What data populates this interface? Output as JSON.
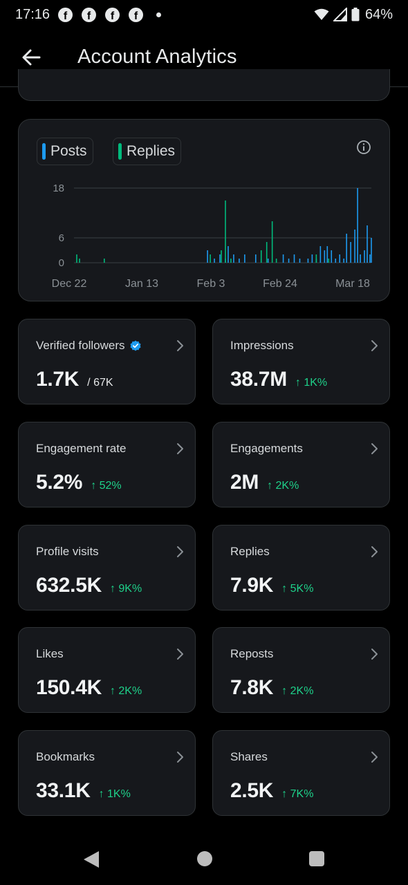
{
  "status_bar": {
    "time": "17:16",
    "notification_icons": [
      "f",
      "f",
      "f",
      "f"
    ],
    "battery_percent": "64%"
  },
  "header": {
    "title": "Account Analytics",
    "back_icon": "arrow-left-icon"
  },
  "chart_legend": {
    "posts_label": "Posts",
    "posts_color": "#1d9bf0",
    "replies_label": "Replies",
    "replies_color": "#00ba7c",
    "info_icon": "info-icon"
  },
  "chart_data": {
    "type": "bar",
    "x_ticks": [
      "Dec 22",
      "Jan 13",
      "Feb 3",
      "Feb 24",
      "Mar 18"
    ],
    "y_ticks": [
      0,
      6,
      18
    ],
    "ylim": [
      0,
      18
    ],
    "grid": true,
    "series": [
      {
        "name": "Posts",
        "color": "#1d9bf0",
        "points": [
          [
            48.5,
            3
          ],
          [
            51,
            1
          ],
          [
            53,
            2
          ],
          [
            55,
            1
          ],
          [
            56,
            4
          ],
          [
            58,
            2
          ],
          [
            60,
            1
          ],
          [
            62,
            2
          ],
          [
            66,
            2
          ],
          [
            68,
            1
          ],
          [
            70.5,
            1
          ],
          [
            76,
            2
          ],
          [
            78,
            1
          ],
          [
            80,
            2
          ],
          [
            82,
            1
          ],
          [
            85,
            1
          ],
          [
            86.5,
            2
          ],
          [
            88,
            1
          ],
          [
            89.5,
            4
          ],
          [
            91,
            3
          ],
          [
            92,
            4
          ],
          [
            93.5,
            3
          ],
          [
            95,
            1
          ],
          [
            96.5,
            2
          ],
          [
            98,
            1
          ],
          [
            99,
            7
          ],
          [
            100.5,
            5
          ],
          [
            102,
            8
          ],
          [
            103,
            18
          ],
          [
            104,
            2
          ],
          [
            105.5,
            3
          ],
          [
            106.5,
            9
          ],
          [
            107.5,
            2
          ],
          [
            108,
            6
          ]
        ]
      },
      {
        "name": "Replies",
        "color": "#00ba7c",
        "points": [
          [
            1,
            2
          ],
          [
            2,
            1
          ],
          [
            11,
            1
          ],
          [
            49.5,
            2
          ],
          [
            53.5,
            3
          ],
          [
            55,
            15
          ],
          [
            57,
            1
          ],
          [
            68,
            3
          ],
          [
            70,
            5
          ],
          [
            72,
            10
          ],
          [
            73.5,
            1
          ],
          [
            88,
            2
          ],
          [
            92.5,
            1
          ]
        ]
      }
    ],
    "x_range_days": [
      0,
      108
    ],
    "note_x_axis": "days from Dec 21"
  },
  "metrics": [
    {
      "label": "Verified followers",
      "value": "1.7K",
      "sub": "/ 67K",
      "delta": "",
      "verified_icon": true
    },
    {
      "label": "Impressions",
      "value": "38.7M",
      "sub": "",
      "delta": "↑ 1K%"
    },
    {
      "label": "Engagement rate",
      "value": "5.2%",
      "sub": "",
      "delta": "↑ 52%"
    },
    {
      "label": "Engagements",
      "value": "2M",
      "sub": "",
      "delta": "↑ 2K%"
    },
    {
      "label": "Profile visits",
      "value": "632.5K",
      "sub": "",
      "delta": "↑ 9K%"
    },
    {
      "label": "Replies",
      "value": "7.9K",
      "sub": "",
      "delta": "↑ 5K%"
    },
    {
      "label": "Likes",
      "value": "150.4K",
      "sub": "",
      "delta": "↑ 2K%"
    },
    {
      "label": "Reposts",
      "value": "7.8K",
      "sub": "",
      "delta": "↑ 2K%"
    },
    {
      "label": "Bookmarks",
      "value": "33.1K",
      "sub": "",
      "delta": "↑ 1K%"
    },
    {
      "label": "Shares",
      "value": "2.5K",
      "sub": "",
      "delta": "↑ 7K%"
    }
  ],
  "colors": {
    "background": "#000000",
    "card": "#16181c",
    "border": "#2f3336",
    "positive": "#1ed18a"
  }
}
